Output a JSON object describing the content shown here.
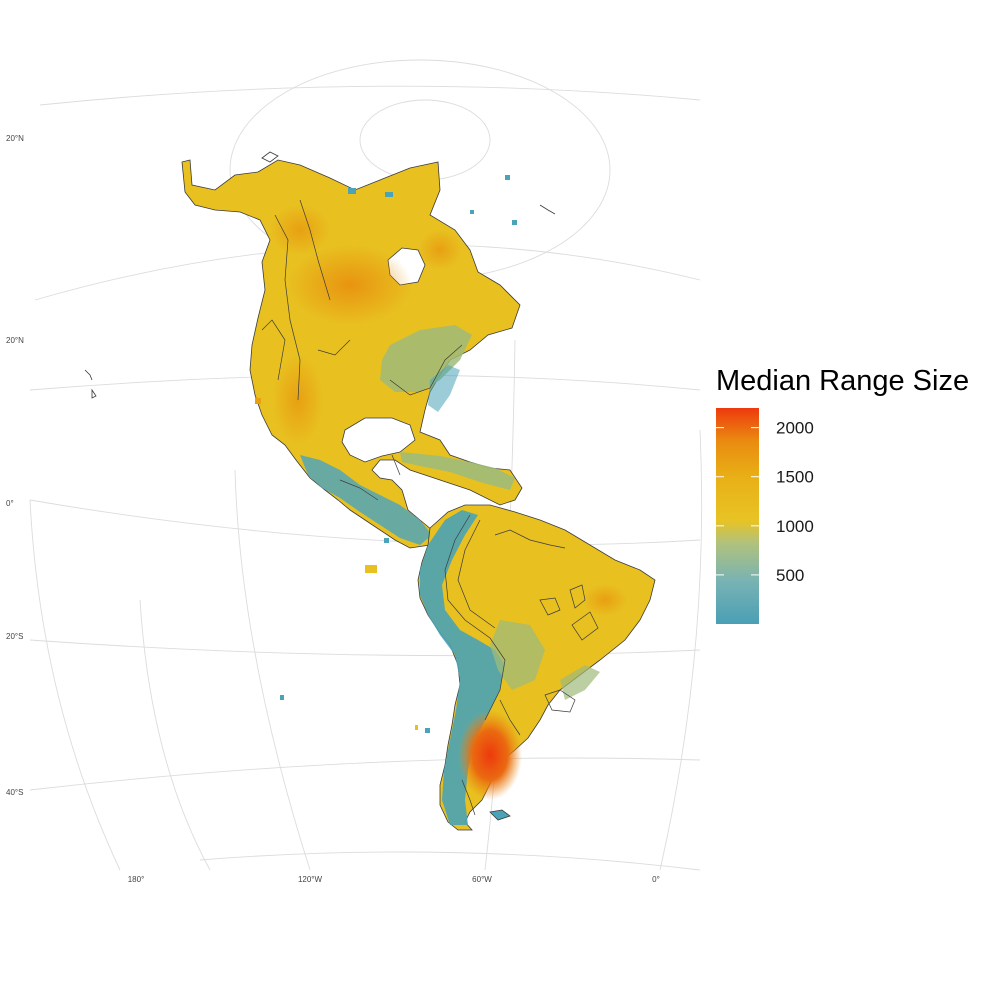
{
  "map": {
    "projection_note": "",
    "lat_labels": [
      "20°N",
      "20°N",
      "0°",
      "20°S",
      "40°S"
    ],
    "lon_labels": [
      "180°",
      "120°W",
      "60°W",
      "0°"
    ],
    "land_palette": {
      "high": "#ee3b0e",
      "orange": "#e8a412",
      "yellow": "#e8c020",
      "mid": "#9fbb7a",
      "low": "#4aa3b6",
      "outline": "#3b3b3b",
      "graticule": "#dcdcdc"
    }
  },
  "legend": {
    "title": "Median Range Size",
    "ticks": [
      "2000",
      "1500",
      "1000",
      "500"
    ],
    "tick_values": [
      2000,
      1500,
      1000,
      500
    ],
    "min": 0,
    "max": 2200,
    "gradient_stops": [
      "#4a9fb5",
      "#79b3b3",
      "#b3c27a",
      "#e8c324",
      "#e8b016",
      "#ea8a10",
      "#ee3a0e"
    ]
  }
}
